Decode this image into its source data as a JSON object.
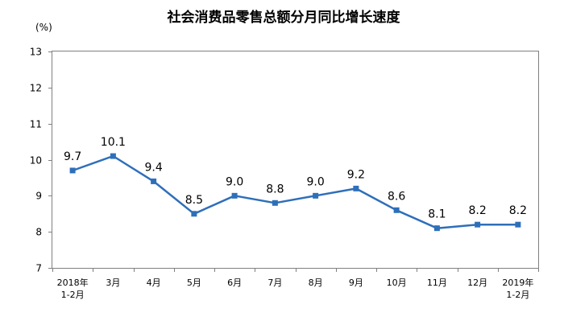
{
  "chart_data": {
    "type": "line",
    "title": "社会消费品零售总额分月同比增长速度",
    "unit_label": "(%)",
    "categories": [
      [
        "2018年",
        "1-2月"
      ],
      [
        "3月"
      ],
      [
        "4月"
      ],
      [
        "5月"
      ],
      [
        "6月"
      ],
      [
        "7月"
      ],
      [
        "8月"
      ],
      [
        "9月"
      ],
      [
        "10月"
      ],
      [
        "11月"
      ],
      [
        "12月"
      ],
      [
        "2019年",
        "1-2月"
      ]
    ],
    "values": [
      9.7,
      10.1,
      9.4,
      8.5,
      9.0,
      8.8,
      9.0,
      9.2,
      8.6,
      8.1,
      8.2,
      8.2
    ],
    "data_labels": [
      "9.7",
      "10.1",
      "9.4",
      "8.5",
      "9.0",
      "8.8",
      "9.0",
      "9.2",
      "8.6",
      "8.1",
      "8.2",
      "8.2"
    ],
    "ylim": [
      7,
      13
    ],
    "yticks": [
      7,
      8,
      9,
      10,
      11,
      12,
      13
    ],
    "grid": false,
    "legend": "none",
    "colors": {
      "line": "#2e6fba",
      "marker": "#2e6fba",
      "axis": "#808080"
    }
  }
}
